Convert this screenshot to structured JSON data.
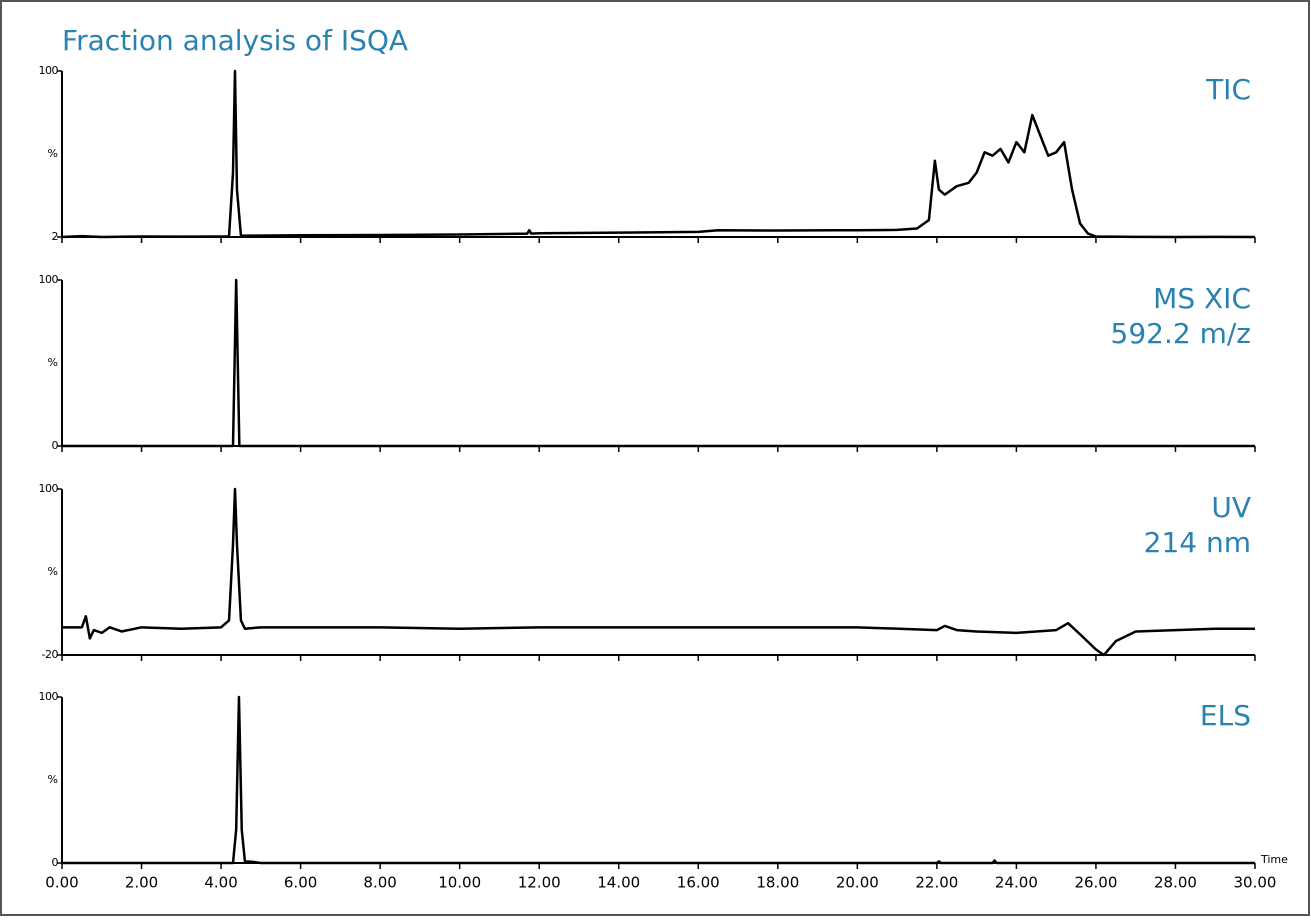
{
  "title": "Fraction analysis of ISQA",
  "chart_data": [
    {
      "type": "line",
      "title": [
        "TIC"
      ],
      "ylabel": "%",
      "color": "#000000",
      "xlim": [
        0,
        30
      ],
      "ylim": [
        2,
        100
      ],
      "yticks": [
        2,
        100
      ],
      "x": [
        0,
        0.5,
        1,
        2,
        3,
        4,
        4.2,
        4.3,
        4.35,
        4.4,
        4.5,
        4.7,
        6,
        8,
        10,
        11.7,
        11.75,
        11.8,
        12,
        14,
        16,
        16.5,
        18,
        19.5,
        20,
        21,
        21.5,
        21.8,
        21.95,
        22.05,
        22.2,
        22.5,
        22.8,
        23.0,
        23.2,
        23.4,
        23.6,
        23.8,
        24.0,
        24.2,
        24.4,
        24.6,
        24.8,
        25.0,
        25.2,
        25.4,
        25.6,
        25.8,
        26.0,
        27,
        28,
        29,
        30
      ],
      "values": [
        2,
        2.5,
        2,
        2.3,
        2.2,
        2.3,
        2.4,
        40,
        100,
        30,
        2.8,
        2.8,
        3,
        3.2,
        3.5,
        4,
        6,
        4,
        4.2,
        4.6,
        5,
        6,
        5.8,
        6,
        6,
        6.2,
        7,
        12,
        47,
        30,
        27,
        32,
        34,
        40,
        52,
        50,
        54,
        46,
        58,
        52,
        74,
        62,
        50,
        52,
        58,
        30,
        10,
        4,
        2.3,
        2.1,
        2,
        2.1,
        2
      ]
    },
    {
      "type": "line",
      "title": [
        "MS XIC",
        "592.2 m/z"
      ],
      "ylabel": "%",
      "color": "#000000",
      "xlim": [
        0,
        30
      ],
      "ylim": [
        0,
        100
      ],
      "yticks": [
        0,
        100
      ],
      "x": [
        0,
        4,
        4.3,
        4.38,
        4.46,
        5,
        30
      ],
      "values": [
        0,
        0,
        0,
        100,
        0,
        0,
        0
      ]
    },
    {
      "type": "line",
      "title": [
        "UV",
        "214 nm"
      ],
      "ylabel": "%",
      "color": "#000000",
      "xlim": [
        0,
        30
      ],
      "ylim": [
        -20,
        100
      ],
      "yticks": [
        -20,
        100
      ],
      "x": [
        0,
        0.5,
        0.6,
        0.7,
        0.8,
        1,
        1.2,
        1.5,
        2,
        3,
        4,
        4.2,
        4.3,
        4.35,
        4.4,
        4.5,
        4.6,
        5,
        6,
        8,
        10,
        12,
        14,
        16,
        18,
        20,
        22,
        22.2,
        22.5,
        23,
        24,
        25,
        25.3,
        25.6,
        26,
        26.2,
        26.5,
        27,
        28,
        29,
        30
      ],
      "values": [
        0,
        0,
        8,
        -8,
        -2,
        -4,
        0,
        -3,
        0,
        -1,
        0,
        5,
        60,
        100,
        60,
        5,
        -1,
        0,
        0,
        0,
        -1,
        0,
        0,
        0,
        0,
        0,
        -2,
        1,
        -2,
        -3,
        -4,
        -2,
        3,
        -5,
        -16,
        -20,
        -10,
        -3,
        -2,
        -1,
        -1
      ]
    },
    {
      "type": "line",
      "title": [
        "ELS"
      ],
      "ylabel": "%",
      "xlabel": "Time",
      "color": "#000000",
      "xlim": [
        0,
        30
      ],
      "ylim": [
        0,
        100
      ],
      "yticks": [
        0,
        100
      ],
      "xticks": [
        {
          "value": 0,
          "label": "0.00"
        },
        {
          "value": 2,
          "label": "2.00"
        },
        {
          "value": 4,
          "label": "4.00"
        },
        {
          "value": 6,
          "label": "6.00"
        },
        {
          "value": 8,
          "label": "8.00"
        },
        {
          "value": 10,
          "label": "10.00"
        },
        {
          "value": 12,
          "label": "12.00"
        },
        {
          "value": 14,
          "label": "14.00"
        },
        {
          "value": 16,
          "label": "16.00"
        },
        {
          "value": 18,
          "label": "18.00"
        },
        {
          "value": 20,
          "label": "20.00"
        },
        {
          "value": 22,
          "label": "22.00"
        },
        {
          "value": 24,
          "label": "24.00"
        },
        {
          "value": 26,
          "label": "26.00"
        },
        {
          "value": 28,
          "label": "28.00"
        },
        {
          "value": 30,
          "label": "30.00"
        }
      ],
      "x": [
        0,
        4.3,
        4.38,
        4.45,
        4.52,
        4.6,
        4.8,
        5,
        22,
        22.05,
        22.1,
        23.4,
        23.45,
        23.5,
        30
      ],
      "values": [
        0,
        0,
        20,
        100,
        20,
        1,
        0.7,
        0,
        0,
        1,
        0,
        0,
        1.5,
        0,
        0
      ]
    }
  ]
}
